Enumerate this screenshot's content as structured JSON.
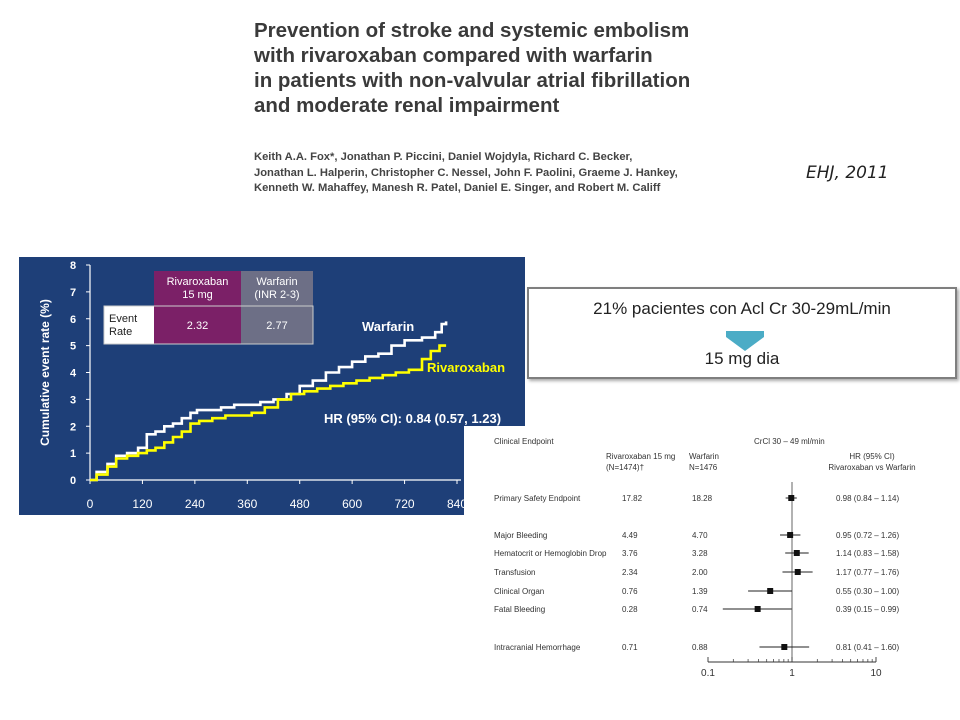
{
  "paper": {
    "title_lines": [
      "Prevention of stroke and systemic embolism",
      "with rivaroxaban compared with warfarin",
      "in patients with non-valvular atrial fibrillation",
      "and moderate renal impairment"
    ],
    "author_lines": [
      "Keith A.A. Fox*, Jonathan P. Piccini, Daniel Wojdyla, Richard C. Becker,",
      "Jonathan L. Halperin, Christopher C. Nessel, John F. Paolini, Graeme J. Hankey,",
      "Kenneth W. Mahaffey, Manesh R. Patel, Daniel E. Singer, and Robert M. Califf"
    ],
    "journal_ref": "EHJ, 2011"
  },
  "callout": {
    "line1": "21% pacientes con Acl Cr 30-29mL/min",
    "line2": "15 mg dia",
    "arrow_color": "#4bacc6"
  },
  "colors": {
    "chart_bg": "#1e3f78",
    "warfarin_line": "#ffffff",
    "rivaroxaban_line": "#ffff00",
    "rivaroxaban_header": "#7b2067",
    "warfarin_header": "#6d6f86"
  },
  "chart_data": [
    {
      "type": "line",
      "ylabel": "Cumulative event rate (%)",
      "ylim": [
        0,
        8
      ],
      "yticks": [
        "0",
        "1",
        "2",
        "3",
        "4",
        "5",
        "6",
        "7",
        "8"
      ],
      "xlim": [
        0,
        840
      ],
      "xticks": [
        "0",
        "120",
        "240",
        "360",
        "480",
        "600",
        "720",
        "840"
      ],
      "grid": false,
      "series": [
        {
          "name": "Warfarin",
          "color": "#ffffff",
          "points": [
            [
              0,
              0
            ],
            [
              15,
              0.3
            ],
            [
              40,
              0.6
            ],
            [
              60,
              0.9
            ],
            [
              85,
              1.0
            ],
            [
              110,
              1.2
            ],
            [
              130,
              1.7
            ],
            [
              150,
              1.8
            ],
            [
              170,
              2.0
            ],
            [
              190,
              2.1
            ],
            [
              210,
              2.3
            ],
            [
              230,
              2.5
            ],
            [
              245,
              2.6
            ],
            [
              280,
              2.6
            ],
            [
              300,
              2.7
            ],
            [
              330,
              2.8
            ],
            [
              360,
              2.8
            ],
            [
              390,
              2.9
            ],
            [
              420,
              3.0
            ],
            [
              450,
              3.2
            ],
            [
              480,
              3.5
            ],
            [
              510,
              3.7
            ],
            [
              540,
              4.0
            ],
            [
              570,
              4.2
            ],
            [
              600,
              4.4
            ],
            [
              630,
              4.6
            ],
            [
              660,
              4.7
            ],
            [
              690,
              5.0
            ],
            [
              720,
              5.2
            ],
            [
              760,
              5.3
            ],
            [
              790,
              5.5
            ],
            [
              805,
              5.8
            ],
            [
              815,
              5.9
            ]
          ]
        },
        {
          "name": "Rivaroxaban",
          "color": "#ffff00",
          "points": [
            [
              0,
              0
            ],
            [
              15,
              0.2
            ],
            [
              40,
              0.5
            ],
            [
              60,
              0.8
            ],
            [
              85,
              0.9
            ],
            [
              110,
              1.0
            ],
            [
              130,
              1.1
            ],
            [
              150,
              1.2
            ],
            [
              170,
              1.4
            ],
            [
              190,
              1.6
            ],
            [
              210,
              1.8
            ],
            [
              230,
              2.1
            ],
            [
              250,
              2.2
            ],
            [
              280,
              2.3
            ],
            [
              310,
              2.4
            ],
            [
              340,
              2.4
            ],
            [
              370,
              2.5
            ],
            [
              400,
              2.7
            ],
            [
              430,
              3.0
            ],
            [
              460,
              3.2
            ],
            [
              490,
              3.3
            ],
            [
              520,
              3.4
            ],
            [
              550,
              3.5
            ],
            [
              580,
              3.6
            ],
            [
              610,
              3.7
            ],
            [
              640,
              3.8
            ],
            [
              670,
              3.9
            ],
            [
              700,
              4.0
            ],
            [
              730,
              4.1
            ],
            [
              760,
              4.5
            ],
            [
              780,
              4.8
            ],
            [
              800,
              5.0
            ],
            [
              815,
              5.0
            ]
          ]
        }
      ],
      "annotations": {
        "warfarin_label": "Warfarin",
        "rivaroxaban_label": "Rivaroxaban",
        "hr_text": "HR (95% CI): 0.84 (0.57, 1.23)"
      },
      "table": {
        "headers": [
          "Rivaroxaban\n15 mg",
          "Warfarin\n(INR 2-3)"
        ],
        "row_label": "Event\nRate",
        "values": [
          "2.32",
          "2.77"
        ]
      }
    },
    {
      "type": "forest",
      "headers": {
        "endpoint": "Clinical Endpoint",
        "crcl": "CrCl 30 – 49 ml/min",
        "riva": "Rivaroxaban 15 mg\n(N=1474)†",
        "warf": "Warfarin\nN=1476",
        "hr": "HR (95% CI)\nRivaroxaban vs Warfarin"
      },
      "x_scale": "log",
      "xlim": [
        0.1,
        10
      ],
      "xticks": [
        "0.1",
        "1",
        "10"
      ],
      "rows": [
        {
          "label": "Primary Safety Endpoint",
          "riva": "17.82",
          "warf": "18.28",
          "hr": 0.98,
          "lo": 0.84,
          "hi": 1.14,
          "hr_text": "0.98 (0.84 – 1.14)"
        },
        {
          "label": "Major Bleeding",
          "riva": "4.49",
          "warf": "4.70",
          "hr": 0.95,
          "lo": 0.72,
          "hi": 1.26,
          "hr_text": "0.95 (0.72 – 1.26)"
        },
        {
          "label": "Hematocrit or Hemoglobin Drop",
          "riva": "3.76",
          "warf": "3.28",
          "hr": 1.14,
          "lo": 0.83,
          "hi": 1.58,
          "hr_text": "1.14 (0.83 – 1.58)"
        },
        {
          "label": "Transfusion",
          "riva": "2.34",
          "warf": "2.00",
          "hr": 1.17,
          "lo": 0.77,
          "hi": 1.76,
          "hr_text": "1.17 (0.77 – 1.76)"
        },
        {
          "label": "Clinical Organ",
          "riva": "0.76",
          "warf": "1.39",
          "hr": 0.55,
          "lo": 0.3,
          "hi": 1.0,
          "hr_text": "0.55 (0.30 – 1.00)"
        },
        {
          "label": "Fatal Bleeding",
          "riva": "0.28",
          "warf": "0.74",
          "hr": 0.39,
          "lo": 0.15,
          "hi": 0.99,
          "hr_text": "0.39 (0.15 – 0.99)"
        },
        {
          "label": "Intracranial Hemorrhage",
          "riva": "0.71",
          "warf": "0.88",
          "hr": 0.81,
          "lo": 0.41,
          "hi": 1.6,
          "hr_text": "0.81 (0.41 – 1.60)"
        }
      ]
    }
  ]
}
